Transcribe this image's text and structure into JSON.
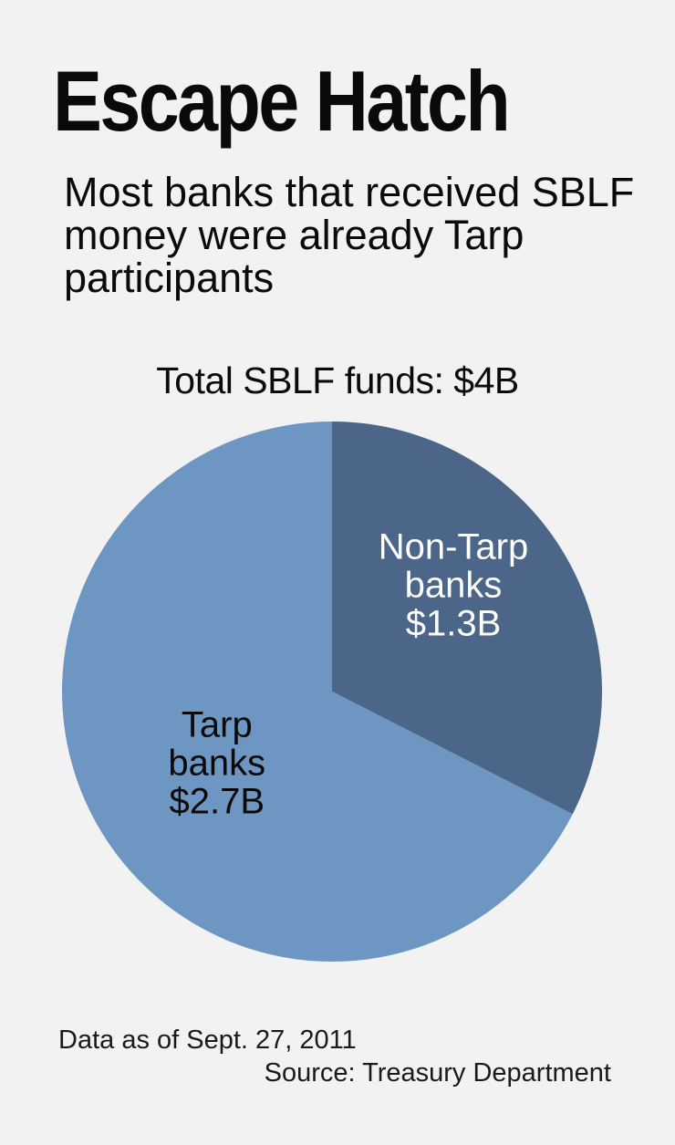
{
  "title": "Escape Hatch",
  "subtitle": "Most banks that received SBLF money were already Tarp participants",
  "total_label": "Total SBLF funds: $4B",
  "footer": {
    "date_note": "Data as of Sept. 27, 2011",
    "source": "Source: Treasury Department"
  },
  "colors": {
    "background": "#f2f2f3",
    "tarp": "#6e96c3",
    "non_tarp": "#4b6688",
    "label_dark": "#0a0a0a",
    "label_light": "#ffffff"
  },
  "chart_data": {
    "type": "pie",
    "title": "Total SBLF funds: $4B",
    "unit": "billion USD",
    "slices": [
      {
        "key": "non_tarp",
        "label_lines": [
          "Non-Tarp",
          "banks",
          "$1.3B"
        ],
        "value": 1.3
      },
      {
        "key": "tarp",
        "label_lines": [
          "Tarp",
          "banks",
          "$2.7B"
        ],
        "value": 2.7
      }
    ]
  }
}
